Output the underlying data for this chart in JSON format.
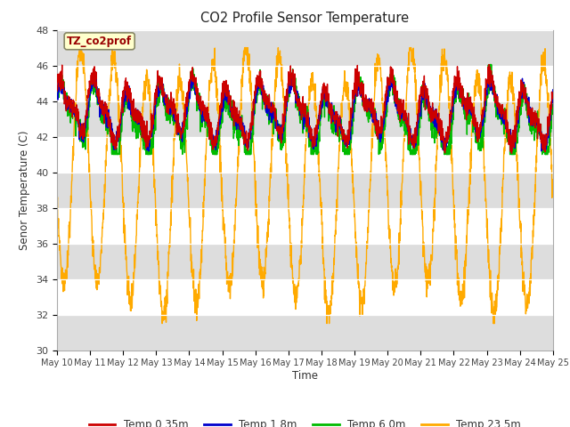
{
  "title": "CO2 Profile Sensor Temperature",
  "ylabel": "Senor Temperature (C)",
  "xlabel": "Time",
  "legend_labels": [
    "Temp 0.35m",
    "Temp 1.8m",
    "Temp 6.0m",
    "Temp 23.5m"
  ],
  "line_colors": [
    "#cc0000",
    "#0000cc",
    "#00bb00",
    "#ffaa00"
  ],
  "ylim": [
    30,
    48
  ],
  "yticks": [
    30,
    32,
    34,
    36,
    38,
    40,
    42,
    44,
    46,
    48
  ],
  "date_labels": [
    "May 10",
    "May 11",
    "May 12",
    "May 13",
    "May 14",
    "May 15",
    "May 16",
    "May 17",
    "May 18",
    "May 19",
    "May 20",
    "May 21",
    "May 22",
    "May 23",
    "May 24",
    "May 25"
  ],
  "annotation_text": "TZ_co2prof",
  "annotation_color": "#990000",
  "annotation_bg": "#ffffcc",
  "fig_bg": "#ffffff",
  "plot_bg": "#dddddd",
  "stripe_color": "#eeeeee"
}
